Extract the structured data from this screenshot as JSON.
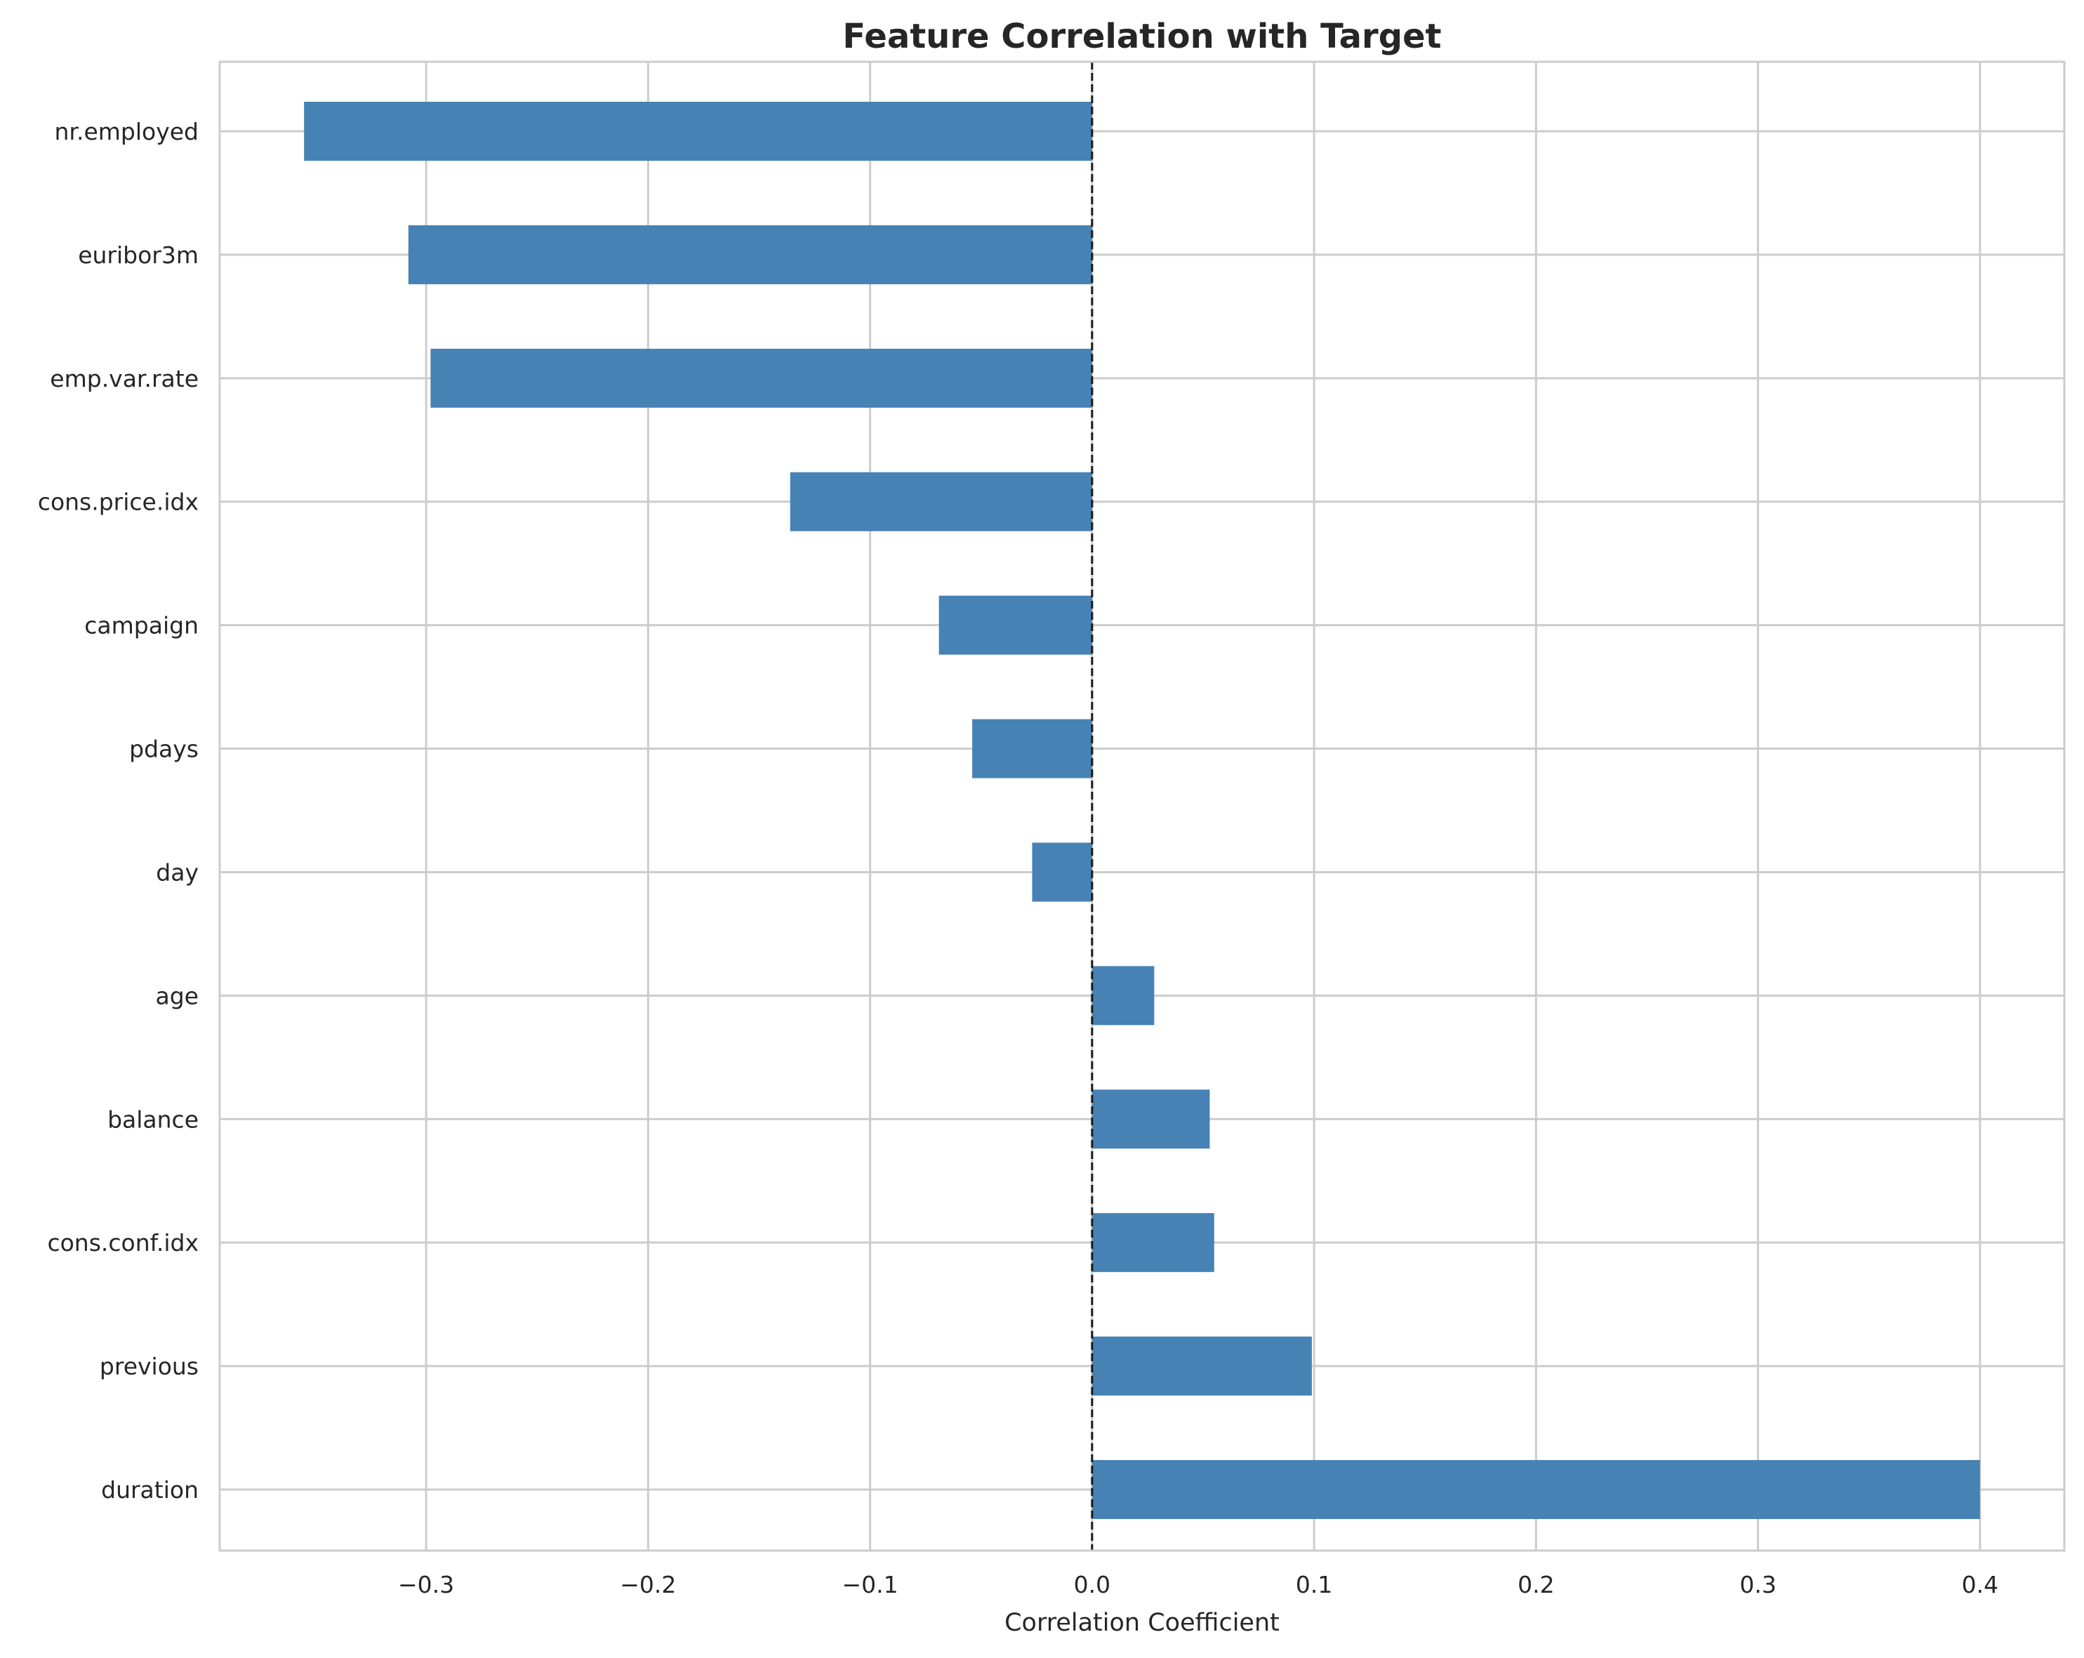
{
  "chart_data": {
    "type": "bar",
    "orientation": "horizontal",
    "title": "Feature Correlation with Target",
    "xlabel": "Correlation Coefficient",
    "ylabel": "",
    "categories": [
      "nr.employed",
      "euribor3m",
      "emp.var.rate",
      "cons.price.idx",
      "campaign",
      "pdays",
      "day",
      "age",
      "balance",
      "cons.conf.idx",
      "previous",
      "duration"
    ],
    "values": [
      -0.355,
      -0.308,
      -0.298,
      -0.136,
      -0.069,
      -0.054,
      -0.027,
      0.028,
      0.053,
      0.055,
      0.099,
      0.4
    ],
    "xlim": [
      -0.393,
      0.438
    ],
    "xticks": [
      -0.3,
      -0.2,
      -0.1,
      0.0,
      0.1,
      0.2,
      0.3,
      0.4
    ],
    "xtick_labels": [
      "−0.3",
      "−0.2",
      "−0.1",
      "0.0",
      "0.1",
      "0.2",
      "0.3",
      "0.4"
    ],
    "reference_line": {
      "x": 0.0,
      "style": "dashed"
    },
    "grid": true,
    "bar_color": "#4682B4",
    "grid_color": "#cccccc",
    "spine_color": "#cccccc"
  }
}
